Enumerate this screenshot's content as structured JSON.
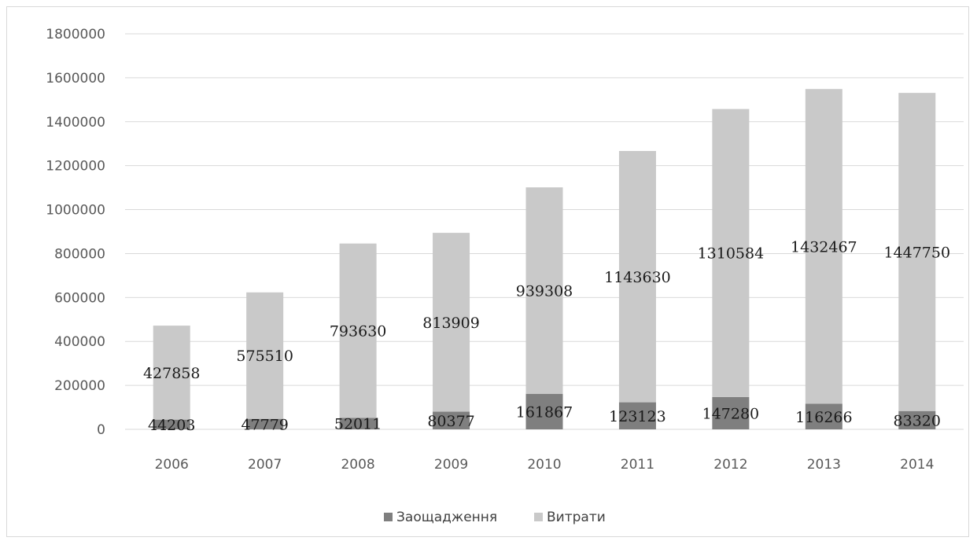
{
  "chart_data": {
    "type": "bar",
    "stacked": true,
    "categories": [
      "2006",
      "2007",
      "2008",
      "2009",
      "2010",
      "2011",
      "2012",
      "2013",
      "2014"
    ],
    "series": [
      {
        "name": "Заощадження",
        "color": "#7f7f7f",
        "values": [
          44203,
          47779,
          52011,
          80377,
          161867,
          123123,
          147280,
          116266,
          83320
        ]
      },
      {
        "name": "Витрати",
        "color": "#c9c9c9",
        "values": [
          427858,
          575510,
          793630,
          813909,
          939308,
          1143630,
          1310584,
          1432467,
          1447750
        ]
      }
    ],
    "title": "",
    "xlabel": "",
    "ylabel": "",
    "ylim": [
      0,
      1800000
    ],
    "yticks": [
      0,
      200000,
      400000,
      600000,
      800000,
      1000000,
      1200000,
      1400000,
      1600000,
      1800000
    ],
    "grid": true,
    "legend_position": "bottom",
    "data_labels": true
  }
}
